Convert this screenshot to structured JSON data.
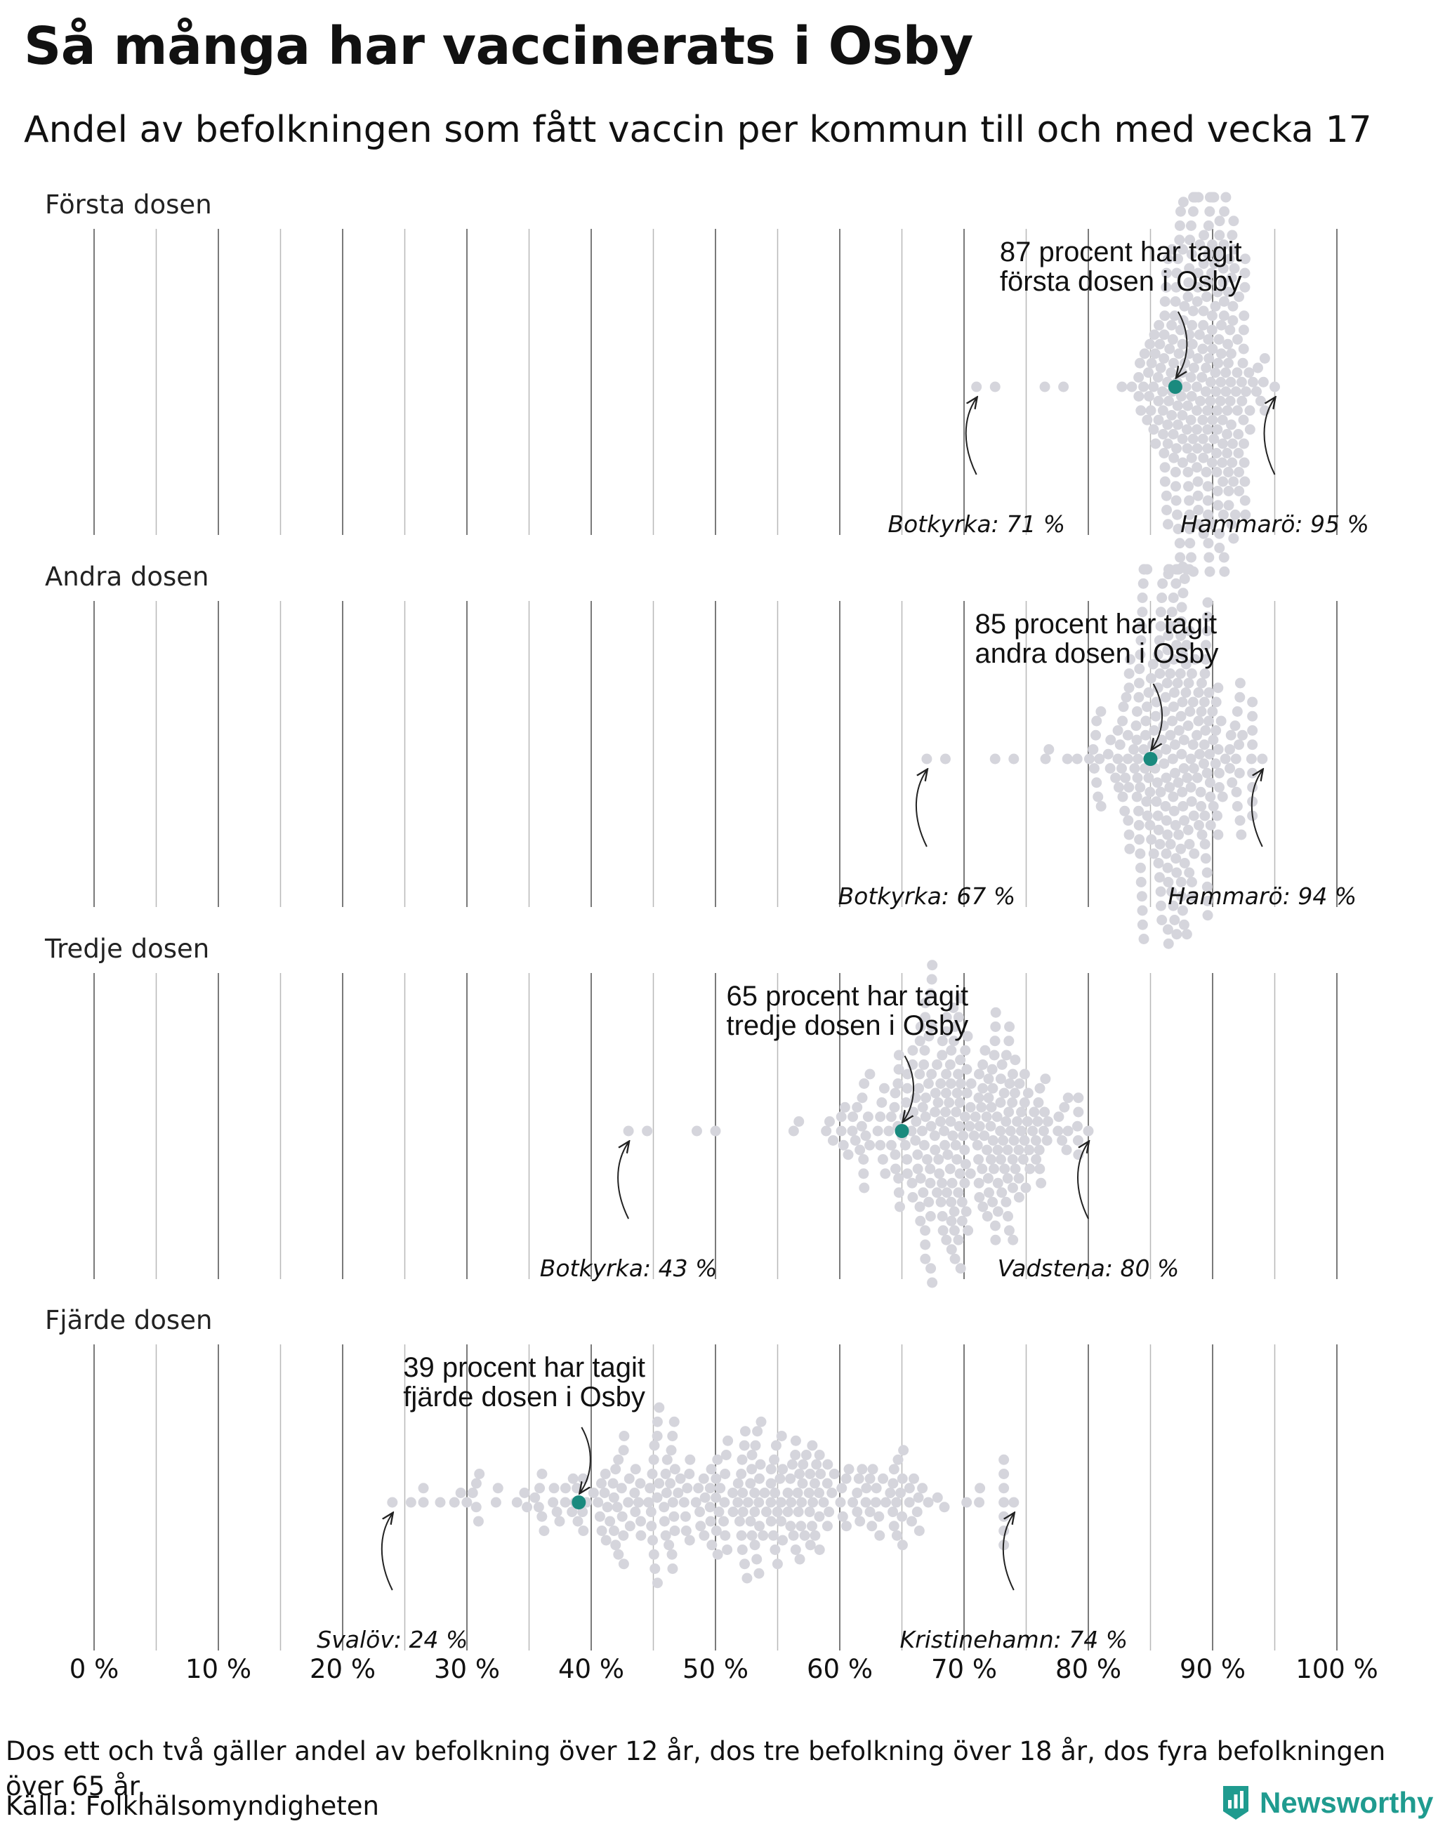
{
  "title": "Så många har vaccinerats i Osby",
  "subtitle": "Andel av befolkningen som fått vaccin per kommun till och med vecka 17",
  "footnote": "Dos ett och två gäller andel av befolkning över 12 år, dos tre befolkning över 18 år, dos fyra befolkningen över 65 år.",
  "source": "Källa: Folkhälsomyndigheten",
  "brand": {
    "name": "Newsworthy",
    "logo_icon": "bar-chart-logo-icon",
    "color": "#1f9b8f"
  },
  "colors": {
    "highlight": "#1a8a7e",
    "dots": "#d5d5dc",
    "gridline": "#888888",
    "arrow": "#222222"
  },
  "chart_data": {
    "type": "scatter",
    "subtype": "beeswarm",
    "title": "Så många har vaccinerats i Osby",
    "x_ticks": [
      0,
      10,
      20,
      30,
      40,
      50,
      60,
      70,
      80,
      90,
      100
    ],
    "x_tick_labels": [
      "0 %",
      "10 %",
      "20 %",
      "30 %",
      "40 %",
      "50 %",
      "60 %",
      "70 %",
      "80 %",
      "90 %",
      "100 %"
    ],
    "xlim": [
      0,
      100
    ],
    "grid": true,
    "highlight_municipality": "Osby",
    "panels": [
      {
        "label": "Första dosen",
        "osby_value": 87,
        "annotation": [
          "87 procent har tagit",
          "första dosen i Osby"
        ],
        "min": {
          "name": "Botkyrka",
          "value": 71,
          "label": "Botkyrka: 71 %"
        },
        "max": {
          "name": "Hammarö",
          "value": 95,
          "label": "Hammarö: 95 %"
        },
        "distribution": {
          "mean": 89,
          "sd": 2.4,
          "count": 290
        }
      },
      {
        "label": "Andra dosen",
        "osby_value": 85,
        "annotation": [
          "85 procent har tagit",
          "andra dosen i Osby"
        ],
        "min": {
          "name": "Botkyrka",
          "value": 67,
          "label": "Botkyrka: 67 %"
        },
        "max": {
          "name": "Hammarö",
          "value": 94,
          "label": "Hammarö: 94 %"
        },
        "distribution": {
          "mean": 87,
          "sd": 3.0,
          "count": 290
        }
      },
      {
        "label": "Tredje dosen",
        "osby_value": 65,
        "annotation": [
          "65 procent har tagit",
          "tredje dosen i Osby"
        ],
        "min": {
          "name": "Botkyrka",
          "value": 43,
          "label": "Botkyrka: 43 %"
        },
        "max": {
          "name": "Vadstena",
          "value": 80,
          "label": "Vadstena: 80 %"
        },
        "distribution": {
          "mean": 69,
          "sd": 4.8,
          "count": 290
        }
      },
      {
        "label": "Fjärde dosen",
        "osby_value": 39,
        "annotation": [
          "39 procent har tagit",
          "fjärde dosen i Osby"
        ],
        "min": {
          "name": "Svalöv",
          "value": 24,
          "label": "Svalöv: 24 %"
        },
        "max": {
          "name": "Kristinehamn",
          "value": 74,
          "label": "Kristinehamn: 74 %"
        },
        "distribution": {
          "mean": 52,
          "sd": 9.5,
          "count": 290
        }
      }
    ]
  }
}
